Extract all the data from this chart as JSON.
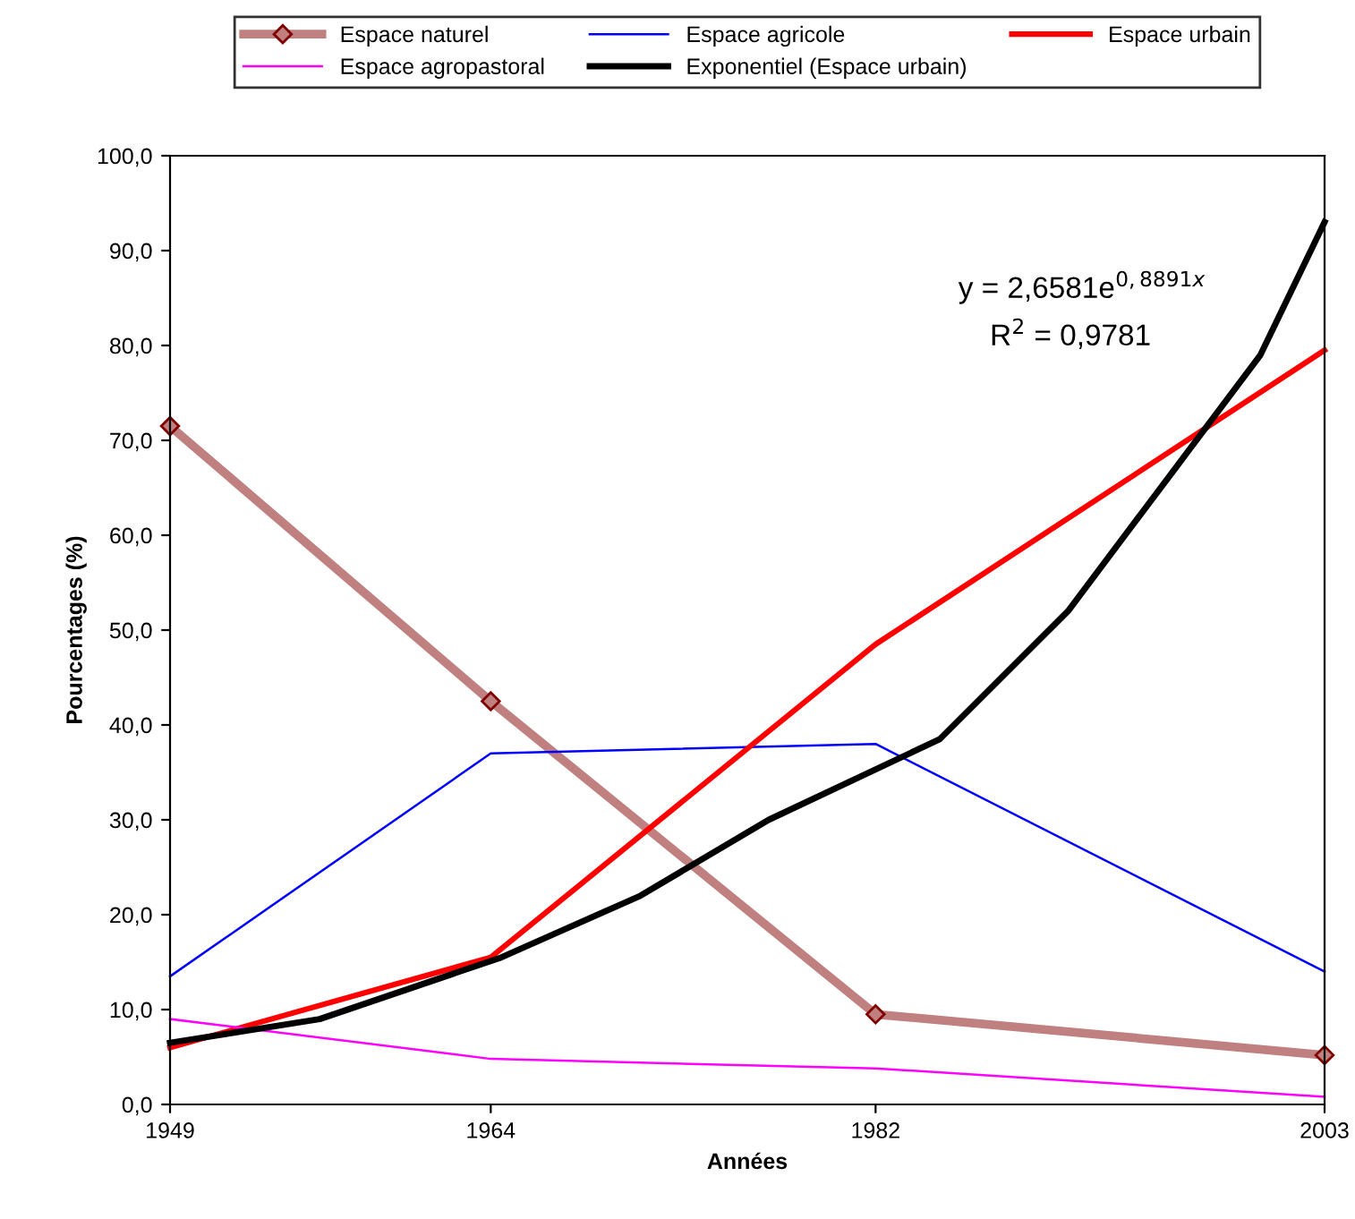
{
  "chart_data": {
    "type": "line",
    "xlabel": "Années",
    "ylabel": "Pourcentages (%)",
    "xlim": [
      1949,
      2003
    ],
    "xticks": [
      1949,
      1964,
      1982,
      2003
    ],
    "ylim": [
      0,
      100
    ],
    "yticks": [
      {
        "value": 0,
        "label": "0,0"
      },
      {
        "value": 10,
        "label": "10,0"
      },
      {
        "value": 20,
        "label": "20,0"
      },
      {
        "value": 30,
        "label": "30,0"
      },
      {
        "value": 40,
        "label": "40,0"
      },
      {
        "value": 50,
        "label": "50,0"
      },
      {
        "value": 60,
        "label": "60,0"
      },
      {
        "value": 70,
        "label": "70,0"
      },
      {
        "value": 80,
        "label": "80,0"
      },
      {
        "value": 90,
        "label": "90,0"
      },
      {
        "value": 100,
        "label": "100,0"
      }
    ],
    "grid": false,
    "legend": "top",
    "series": [
      {
        "name": "Espace naturel",
        "color": "#c08080",
        "x": [
          1949,
          1964,
          1982,
          2003
        ],
        "values": [
          71.5,
          42.5,
          9.5,
          5.2
        ],
        "marker": "diamond"
      },
      {
        "name": "Espace agricole",
        "color": "#0000ff",
        "x": [
          1949,
          1964,
          1982,
          2003
        ],
        "values": [
          13.5,
          37.0,
          38.0,
          14.0
        ]
      },
      {
        "name": "Espace urbain",
        "color": "#ff0000",
        "x": [
          1949,
          1964,
          1982,
          2003
        ],
        "values": [
          6.0,
          15.5,
          48.5,
          79.5
        ]
      },
      {
        "name": "Espace agropastoral",
        "color": "#ff00ff",
        "x": [
          1949,
          1964,
          1982,
          2003
        ],
        "values": [
          9.0,
          4.8,
          3.8,
          0.8
        ]
      },
      {
        "name": "Exponentiel (Espace urbain)",
        "color": "#000000",
        "x": [
          1949,
          1956,
          1964.5,
          1971,
          1977,
          1985,
          1991,
          1996,
          2000,
          2003
        ],
        "values": [
          6.5,
          9.0,
          15.5,
          22.0,
          30.0,
          38.5,
          52.0,
          67.0,
          79.0,
          93.0
        ]
      }
    ],
    "annotations": [
      "y = 2,6581e$^{0,8891x}$",
      "R$^{2}$ = 0,9781"
    ]
  }
}
